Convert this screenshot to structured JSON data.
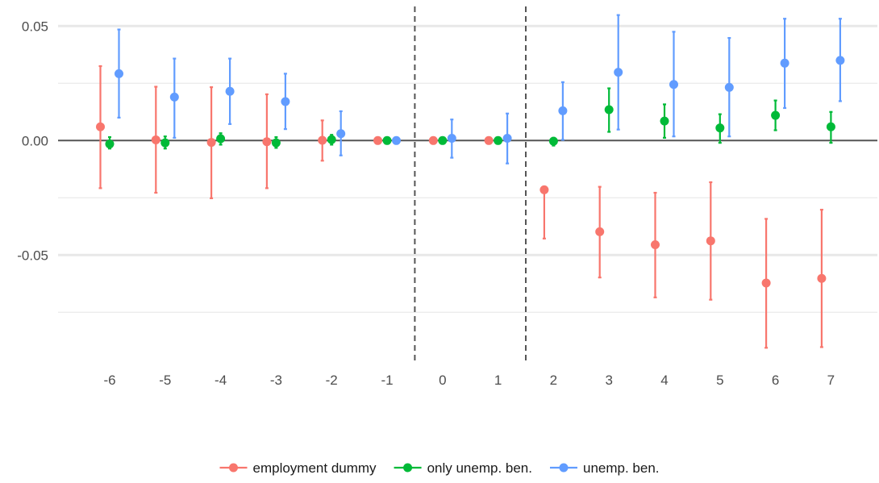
{
  "chart_data": {
    "type": "scatter",
    "subtype": "event-study point estimates with 95% confidence intervals",
    "title": "",
    "xlabel": "",
    "ylabel": "",
    "categories": [
      "-6",
      "-5",
      "-4",
      "-3",
      "-2",
      "-1",
      "0",
      "1",
      "2",
      "3",
      "4",
      "5",
      "6",
      "7"
    ],
    "ylim": [
      -0.097,
      0.058
    ],
    "y_ticks": [
      0.05,
      0.0,
      -0.05
    ],
    "y_tick_labels": [
      "0.05",
      "0.00",
      "-0.05"
    ],
    "reference_hline": 0.0,
    "reference_vlines_between": [
      [
        "-1",
        "0"
      ],
      [
        "1",
        "2"
      ]
    ],
    "grid": true,
    "legend_position": "bottom",
    "series": [
      {
        "name": "employment dummy",
        "color": "#F8766D",
        "values": [
          0.006,
          0.0003,
          -0.0008,
          -0.0005,
          0.0001,
          0.0,
          0.0,
          0.0,
          -0.0215,
          -0.0398,
          -0.0455,
          -0.0438,
          -0.0622,
          -0.0602
        ],
        "ci_low": [
          -0.0208,
          -0.0228,
          -0.0252,
          -0.0208,
          -0.0088,
          0.0,
          0.0,
          0.0,
          -0.0428,
          -0.0598,
          -0.0685,
          -0.0695,
          -0.0905,
          -0.0902
        ],
        "ci_high": [
          0.0325,
          0.0235,
          0.0233,
          0.0202,
          0.0088,
          0.0,
          0.0,
          0.0,
          -0.0208,
          -0.0202,
          -0.0228,
          -0.0182,
          -0.0342,
          -0.0302
        ]
      },
      {
        "name": "only unemp. ben.",
        "color": "#00BA38",
        "values": [
          -0.0015,
          -0.001,
          0.0008,
          -0.001,
          0.0004,
          0.0,
          0.0,
          0.0,
          -0.0003,
          0.0135,
          0.0085,
          0.0055,
          0.011,
          0.006
        ],
        "ci_low": [
          -0.0035,
          -0.0035,
          -0.0018,
          -0.0032,
          -0.0018,
          0.0,
          0.0,
          0.0,
          -0.0022,
          0.0038,
          0.0012,
          -0.001,
          0.0045,
          -0.001
        ],
        "ci_high": [
          0.0015,
          0.0018,
          0.0032,
          0.0015,
          0.0025,
          0.0,
          0.0,
          0.0,
          0.0012,
          0.0228,
          0.0158,
          0.0115,
          0.0175,
          0.0125
        ]
      },
      {
        "name": "unemp. ben.",
        "color": "#619CFF",
        "values": [
          0.0292,
          0.019,
          0.0215,
          0.017,
          0.003,
          0.0,
          0.001,
          0.001,
          0.013,
          0.0298,
          0.0245,
          0.0232,
          0.0338,
          0.035
        ],
        "ci_low": [
          0.01,
          0.0012,
          0.0072,
          0.005,
          -0.0065,
          0.0,
          -0.0075,
          -0.01,
          0.0003,
          0.0048,
          0.0018,
          0.0018,
          0.0142,
          0.0172
        ],
        "ci_high": [
          0.0485,
          0.0358,
          0.0358,
          0.0292,
          0.0128,
          0.0,
          0.0092,
          0.0118,
          0.0255,
          0.0548,
          0.0475,
          0.0448,
          0.0532,
          0.0532
        ]
      }
    ]
  }
}
